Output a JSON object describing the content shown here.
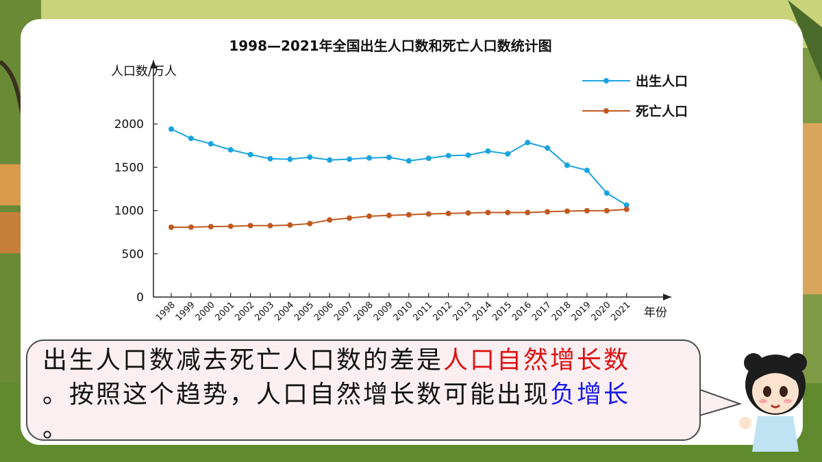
{
  "chart_data": {
    "type": "line",
    "title": "1998—2021年全国出生人口数和死亡人口数统计图",
    "ylabel": "人口数/万人",
    "xlabel": "年份",
    "ylim": [
      0,
      2000
    ],
    "yticks": [
      0,
      500,
      1000,
      1500,
      2000
    ],
    "categories": [
      "1998",
      "1999",
      "2000",
      "2001",
      "2002",
      "2003",
      "2004",
      "2005",
      "2006",
      "2007",
      "2008",
      "2009",
      "2010",
      "2011",
      "2012",
      "2013",
      "2014",
      "2015",
      "2016",
      "2017",
      "2018",
      "2019",
      "2020",
      "2021"
    ],
    "legend_position": "top-right",
    "grid": false,
    "series": [
      {
        "name": "出生人口",
        "color": "#1aa3e0",
        "values": [
          1942,
          1834,
          1771,
          1702,
          1647,
          1599,
          1593,
          1617,
          1584,
          1594,
          1608,
          1615,
          1574,
          1604,
          1635,
          1640,
          1687,
          1655,
          1786,
          1723,
          1523,
          1465,
          1202,
          1062
        ]
      },
      {
        "name": "死亡人口",
        "color": "#c0581f",
        "values": [
          807,
          808,
          814,
          818,
          826,
          825,
          832,
          849,
          892,
          913,
          935,
          943,
          951,
          960,
          966,
          972,
          977,
          977,
          977,
          986,
          993,
          998,
          998,
          1014
        ]
      }
    ]
  },
  "bubble": {
    "line1_a": "出生人口数减去死亡人口数的差是",
    "line1_b": "人口自然增长数",
    "line2_a": "。按照这个趋势，人口自然增长数可能出现",
    "line2_b": "负增长",
    "line3": "。"
  },
  "colors": {
    "card": "#ffffff",
    "bubble_fill": "#fbeff2",
    "highlight_red": "#e01010",
    "highlight_blue": "#1a1aee"
  },
  "icons": {
    "character": "cartoon-girl-icon"
  }
}
